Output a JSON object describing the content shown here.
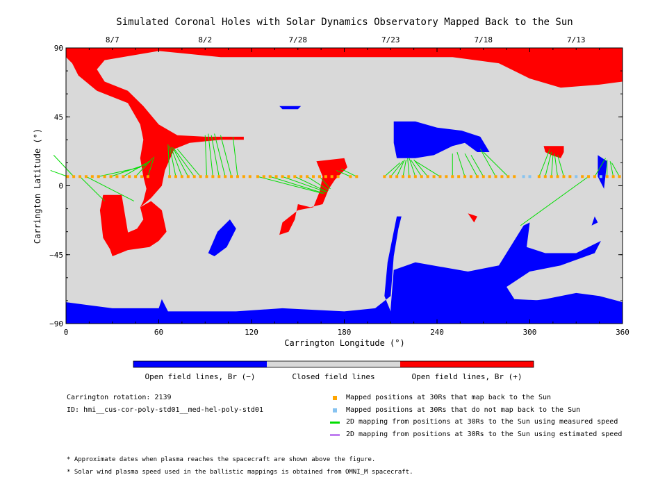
{
  "chart_data": {
    "type": "map",
    "title": "Simulated Coronal Holes with Solar Dynamics Observatory Mapped Back to the Sun",
    "xlabel": "Carrington Longitude (°)",
    "ylabel": "Carrington Latitude (°)",
    "xlim": [
      0,
      360
    ],
    "ylim": [
      -90,
      90
    ],
    "x_ticks": [
      "0",
      "60",
      "120",
      "180",
      "240",
      "300",
      "360"
    ],
    "y_ticks": [
      "90",
      "45",
      "0",
      "−45",
      "−90"
    ],
    "top_dates": [
      {
        "label": "8/7",
        "lon": 30
      },
      {
        "label": "8/2",
        "lon": 90
      },
      {
        "label": "7/28",
        "lon": 150
      },
      {
        "label": "7/23",
        "lon": 210
      },
      {
        "label": "7/18",
        "lon": 270
      },
      {
        "label": "7/13",
        "lon": 330
      }
    ],
    "colors": {
      "negative": "#0000ff",
      "closed": "#d9d9d9",
      "positive": "#ff0000",
      "mapped": "#ffa500",
      "unmapped": "#87c3f0",
      "measured": "#00dd00",
      "estimated": "#c080f0"
    },
    "colorbar_labels": [
      "Open field lines, Br (−)",
      "Closed field lines",
      "Open field lines, Br (+)"
    ],
    "mapped_lat": 6,
    "mapped_points": [
      1,
      5,
      9,
      13,
      17,
      21,
      25,
      29,
      33,
      37,
      41,
      45,
      49,
      53,
      67,
      71,
      75,
      79,
      83,
      87,
      91,
      95,
      99,
      103,
      107,
      111,
      115,
      119,
      124,
      128,
      132,
      136,
      140,
      144,
      148,
      152,
      156,
      160,
      164,
      168,
      172,
      176,
      184,
      188,
      206,
      210,
      214,
      218,
      222,
      226,
      230,
      234,
      238,
      242,
      246,
      250,
      254,
      258,
      262,
      266,
      270,
      274,
      278,
      282,
      286,
      290,
      306,
      310,
      314,
      318,
      322,
      326,
      334,
      338,
      342,
      350,
      354,
      358
    ],
    "unmapped_points": [
      296,
      300,
      330,
      346
    ],
    "measured_lines": [
      {
        "from": [
          1,
          6
        ],
        "to": [
          -10,
          10
        ]
      },
      {
        "from": [
          5,
          6
        ],
        "to": [
          -8,
          20
        ]
      },
      {
        "from": [
          9,
          6
        ],
        "to": [
          25,
          -10
        ]
      },
      {
        "from": [
          13,
          6
        ],
        "to": [
          44,
          -10
        ]
      },
      {
        "from": [
          21,
          6
        ],
        "to": [
          48,
          12
        ]
      },
      {
        "from": [
          29,
          6
        ],
        "to": [
          52,
          14
        ]
      },
      {
        "from": [
          37,
          6
        ],
        "to": [
          54,
          16
        ]
      },
      {
        "from": [
          45,
          6
        ],
        "to": [
          56,
          18
        ]
      },
      {
        "from": [
          53,
          6
        ],
        "to": [
          57,
          19
        ]
      },
      {
        "from": [
          67,
          6
        ],
        "to": [
          66,
          27
        ]
      },
      {
        "from": [
          71,
          6
        ],
        "to": [
          67,
          26
        ]
      },
      {
        "from": [
          75,
          6
        ],
        "to": [
          68,
          25
        ]
      },
      {
        "from": [
          79,
          6
        ],
        "to": [
          69,
          25
        ]
      },
      {
        "from": [
          83,
          6
        ],
        "to": [
          70,
          24
        ]
      },
      {
        "from": [
          87,
          6
        ],
        "to": [
          72,
          24
        ]
      },
      {
        "from": [
          91,
          6
        ],
        "to": [
          90,
          33
        ]
      },
      {
        "from": [
          95,
          6
        ],
        "to": [
          92,
          34
        ]
      },
      {
        "from": [
          99,
          6
        ],
        "to": [
          94,
          33
        ]
      },
      {
        "from": [
          103,
          6
        ],
        "to": [
          96,
          34
        ]
      },
      {
        "from": [
          107,
          6
        ],
        "to": [
          100,
          33
        ]
      },
      {
        "from": [
          111,
          6
        ],
        "to": [
          108,
          32
        ]
      },
      {
        "from": [
          124,
          6
        ],
        "to": [
          166,
          -5
        ]
      },
      {
        "from": [
          132,
          6
        ],
        "to": [
          167,
          -5
        ]
      },
      {
        "from": [
          140,
          6
        ],
        "to": [
          168,
          -4
        ]
      },
      {
        "from": [
          148,
          6
        ],
        "to": [
          169,
          -4
        ]
      },
      {
        "from": [
          156,
          6
        ],
        "to": [
          170,
          -3
        ]
      },
      {
        "from": [
          164,
          6
        ],
        "to": [
          171,
          -2
        ]
      },
      {
        "from": [
          184,
          6
        ],
        "to": [
          175,
          10
        ]
      },
      {
        "from": [
          188,
          6
        ],
        "to": [
          178,
          11
        ]
      },
      {
        "from": [
          206,
          6
        ],
        "to": [
          216,
          15
        ]
      },
      {
        "from": [
          210,
          6
        ],
        "to": [
          218,
          16
        ]
      },
      {
        "from": [
          214,
          6
        ],
        "to": [
          219,
          17
        ]
      },
      {
        "from": [
          218,
          6
        ],
        "to": [
          220,
          17
        ]
      },
      {
        "from": [
          222,
          6
        ],
        "to": [
          221,
          18
        ]
      },
      {
        "from": [
          226,
          6
        ],
        "to": [
          222,
          18
        ]
      },
      {
        "from": [
          230,
          6
        ],
        "to": [
          223,
          17
        ]
      },
      {
        "from": [
          234,
          6
        ],
        "to": [
          225,
          17
        ]
      },
      {
        "from": [
          242,
          6
        ],
        "to": [
          226,
          16
        ]
      },
      {
        "from": [
          250,
          6
        ],
        "to": [
          250,
          21
        ]
      },
      {
        "from": [
          258,
          6
        ],
        "to": [
          253,
          22
        ]
      },
      {
        "from": [
          266,
          6
        ],
        "to": [
          258,
          21
        ]
      },
      {
        "from": [
          270,
          6
        ],
        "to": [
          262,
          20
        ]
      },
      {
        "from": [
          278,
          6
        ],
        "to": [
          268,
          24
        ]
      },
      {
        "from": [
          286,
          6
        ],
        "to": [
          270,
          22
        ]
      },
      {
        "from": [
          294,
          -26
        ],
        "to": [
          338,
          6
        ]
      },
      {
        "from": [
          306,
          6
        ],
        "to": [
          313,
          24
        ]
      },
      {
        "from": [
          310,
          6
        ],
        "to": [
          314,
          22
        ]
      },
      {
        "from": [
          314,
          6
        ],
        "to": [
          315,
          20
        ]
      },
      {
        "from": [
          318,
          6
        ],
        "to": [
          316,
          21
        ]
      },
      {
        "from": [
          322,
          6
        ],
        "to": [
          318,
          20
        ]
      },
      {
        "from": [
          342,
          6
        ],
        "to": [
          349,
          18
        ]
      },
      {
        "from": [
          350,
          6
        ],
        "to": [
          350,
          17
        ]
      },
      {
        "from": [
          354,
          6
        ],
        "to": [
          352,
          16
        ]
      },
      {
        "from": [
          358,
          6
        ],
        "to": [
          353,
          15
        ]
      }
    ],
    "positive_regions": [
      [
        [
          0,
          90
        ],
        [
          360,
          90
        ],
        [
          360,
          68
        ],
        [
          345,
          66
        ],
        [
          320,
          64
        ],
        [
          300,
          70
        ],
        [
          280,
          80
        ],
        [
          250,
          84
        ],
        [
          200,
          84
        ],
        [
          150,
          84
        ],
        [
          100,
          84
        ],
        [
          60,
          88
        ],
        [
          25,
          82
        ],
        [
          20,
          76
        ],
        [
          25,
          68
        ],
        [
          40,
          62
        ],
        [
          50,
          52
        ],
        [
          60,
          40
        ],
        [
          72,
          33
        ],
        [
          90,
          32
        ],
        [
          105,
          32
        ],
        [
          115,
          32
        ],
        [
          115,
          30
        ],
        [
          100,
          30
        ],
        [
          80,
          28
        ],
        [
          70,
          24
        ],
        [
          64,
          10
        ],
        [
          62,
          0
        ],
        [
          55,
          -8
        ],
        [
          48,
          -14
        ],
        [
          50,
          -10
        ],
        [
          52,
          -2
        ],
        [
          50,
          6
        ],
        [
          48,
          18
        ],
        [
          50,
          30
        ],
        [
          48,
          40
        ],
        [
          40,
          54
        ],
        [
          20,
          62
        ],
        [
          8,
          72
        ],
        [
          4,
          80
        ],
        [
          0,
          84
        ]
      ],
      [
        [
          48,
          -14
        ],
        [
          55,
          -10
        ],
        [
          62,
          -16
        ],
        [
          65,
          -30
        ],
        [
          60,
          -36
        ],
        [
          54,
          -40
        ],
        [
          40,
          -42
        ],
        [
          30,
          -46
        ],
        [
          28,
          -40
        ],
        [
          32,
          -34
        ],
        [
          46,
          -28
        ],
        [
          50,
          -22
        ]
      ],
      [
        [
          24,
          -6
        ],
        [
          36,
          -6
        ],
        [
          40,
          -30
        ],
        [
          44,
          -40
        ],
        [
          30,
          -44
        ],
        [
          24,
          -34
        ],
        [
          22,
          -16
        ]
      ],
      [
        [
          162,
          16
        ],
        [
          180,
          18
        ],
        [
          182,
          12
        ],
        [
          174,
          4
        ],
        [
          170,
          -2
        ],
        [
          166,
          -12
        ],
        [
          158,
          -14
        ],
        [
          150,
          -12
        ],
        [
          148,
          -22
        ],
        [
          144,
          -30
        ],
        [
          138,
          -32
        ],
        [
          140,
          -24
        ],
        [
          150,
          -16
        ],
        [
          160,
          -14
        ],
        [
          164,
          -4
        ],
        [
          166,
          6
        ]
      ],
      [
        [
          309,
          26
        ],
        [
          322,
          26
        ],
        [
          322,
          22
        ],
        [
          320,
          18
        ],
        [
          314,
          20
        ],
        [
          310,
          22
        ]
      ],
      [
        [
          260,
          -18
        ],
        [
          266,
          -20
        ],
        [
          264,
          -24
        ]
      ]
    ],
    "negative_regions": [
      [
        [
          0,
          -76
        ],
        [
          30,
          -80
        ],
        [
          60,
          -80
        ],
        [
          62,
          -74
        ],
        [
          66,
          -82
        ],
        [
          110,
          -82
        ],
        [
          140,
          -80
        ],
        [
          180,
          -82
        ],
        [
          200,
          -80
        ],
        [
          210,
          -72
        ],
        [
          212,
          -46
        ],
        [
          215,
          -28
        ],
        [
          217,
          -20
        ],
        [
          214,
          -20
        ],
        [
          208,
          -50
        ],
        [
          206,
          -72
        ],
        [
          210,
          -82
        ],
        [
          230,
          -80
        ],
        [
          280,
          -78
        ],
        [
          310,
          -74
        ],
        [
          330,
          -70
        ],
        [
          345,
          -72
        ],
        [
          360,
          -76
        ],
        [
          360,
          -90
        ],
        [
          0,
          -90
        ]
      ],
      [
        [
          210,
          -80
        ],
        [
          212,
          -55
        ],
        [
          226,
          -50
        ],
        [
          260,
          -56
        ],
        [
          280,
          -52
        ],
        [
          296,
          -26
        ],
        [
          300,
          -24
        ],
        [
          298,
          -40
        ],
        [
          310,
          -44
        ],
        [
          330,
          -44
        ],
        [
          346,
          -36
        ],
        [
          342,
          -44
        ],
        [
          320,
          -52
        ],
        [
          300,
          -56
        ],
        [
          285,
          -66
        ],
        [
          290,
          -74
        ],
        [
          330,
          -76
        ],
        [
          355,
          -80
        ],
        [
          360,
          -78
        ],
        [
          360,
          -90
        ],
        [
          210,
          -90
        ]
      ],
      [
        [
          212,
          42
        ],
        [
          226,
          42
        ],
        [
          240,
          38
        ],
        [
          256,
          36
        ],
        [
          268,
          32
        ],
        [
          274,
          22
        ],
        [
          266,
          22
        ],
        [
          258,
          28
        ],
        [
          250,
          26
        ],
        [
          238,
          20
        ],
        [
          226,
          18
        ],
        [
          214,
          18
        ],
        [
          212,
          28
        ]
      ],
      [
        [
          92,
          -44
        ],
        [
          98,
          -30
        ],
        [
          106,
          -22
        ],
        [
          110,
          -28
        ],
        [
          104,
          -40
        ],
        [
          96,
          -46
        ]
      ],
      [
        [
          138,
          52
        ],
        [
          152,
          52
        ],
        [
          150,
          50
        ],
        [
          140,
          50
        ]
      ],
      [
        [
          344,
          20
        ],
        [
          350,
          16
        ],
        [
          348,
          -2
        ],
        [
          344,
          6
        ]
      ],
      [
        [
          342,
          -20
        ],
        [
          344,
          -24
        ],
        [
          340,
          -26
        ]
      ]
    ]
  },
  "colorbar": {
    "neg_label": "Open field lines, Br (−)",
    "closed_label": "Closed field lines",
    "pos_label": "Open field lines, Br (+)"
  },
  "info": {
    "rotation": "Carrington rotation: 2139",
    "id": "ID: hmi__cus-cor-poly-std01__med-hel-poly-std01"
  },
  "legend": {
    "mapped": "Mapped positions at 30Rs that map back to the Sun",
    "unmapped": "Mapped positions at 30Rs that do not map back to the Sun",
    "measured": "2D mapping from positions at 30Rs to the Sun using measured speed",
    "estimated": "2D mapping from positions at 30Rs to the Sun using estimated speed"
  },
  "notes": {
    "n1": "* Approximate dates when plasma reaches the spacecraft are shown above the figure.",
    "n2": "* Solar wind plasma speed used in the ballistic mappings is obtained from OMNI_M spacecraft."
  }
}
